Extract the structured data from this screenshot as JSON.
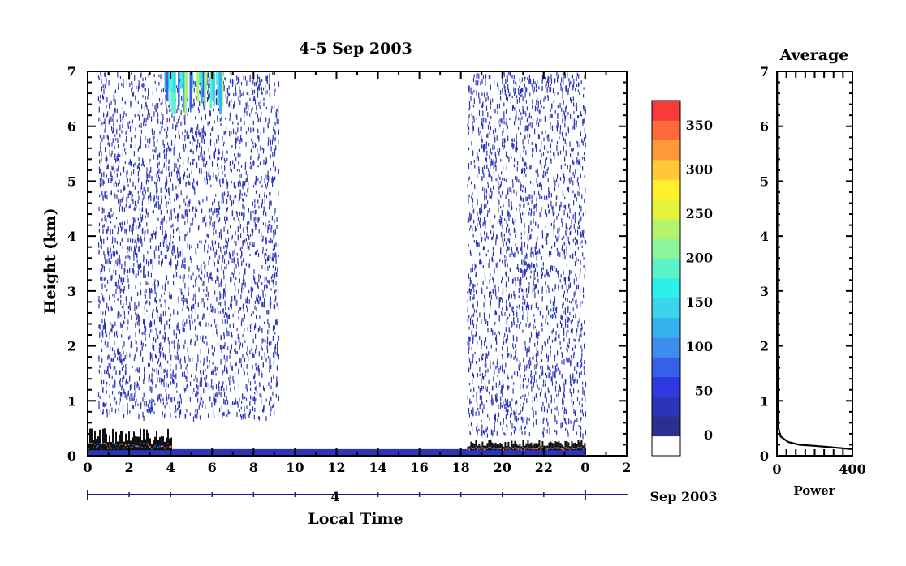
{
  "chart_data": [
    {
      "type": "heatmap",
      "title": "4-5 Sep 2003",
      "xlabel": "Local Time",
      "ylabel": "Height (km)",
      "xlim": [
        0,
        26
      ],
      "ylim": [
        0,
        7
      ],
      "x_ticks": [
        "0",
        "2",
        "4",
        "6",
        "8",
        "10",
        "12",
        "14",
        "16",
        "18",
        "20",
        "22",
        "0",
        "2"
      ],
      "y_ticks": [
        "0",
        "1",
        "2",
        "3",
        "4",
        "5",
        "6",
        "7"
      ],
      "date_axis": {
        "day_label": "4",
        "month_label": "Sep 2003",
        "span_hours": [
          0,
          24
        ]
      },
      "colorbar": {
        "ticks": [
          "0",
          "50",
          "100",
          "150",
          "200",
          "250",
          "300",
          "350"
        ],
        "colors": [
          "#ffffff",
          "#2b2f8f",
          "#2a35b8",
          "#2e3ae0",
          "#3560ea",
          "#3f8cef",
          "#35b2ee",
          "#3ad4ec",
          "#2df0ec",
          "#5cf3c8",
          "#8cf49a",
          "#b5f36a",
          "#e5f33c",
          "#fff02e",
          "#ffc838",
          "#ff9a3a",
          "#ff6a3c",
          "#f73a3a"
        ]
      },
      "data_regions": [
        {
          "name": "sparse noise",
          "time_hours": [
            0.5,
            9.2
          ],
          "height_km": [
            0.7,
            7
          ],
          "value": 25
        },
        {
          "name": "sparse noise",
          "time_hours": [
            18.3,
            24
          ],
          "height_km": [
            0.4,
            7
          ],
          "value": 25
        },
        {
          "name": "near-surface layer",
          "time_hours": [
            0,
            24
          ],
          "height_km": [
            0,
            0.12
          ],
          "value": 30
        },
        {
          "name": "boundary layer echo",
          "time_hours": [
            0,
            4
          ],
          "height_km": [
            0.1,
            0.5
          ],
          "value": 60
        },
        {
          "name": "boundary layer echo",
          "time_hours": [
            18.3,
            24
          ],
          "height_km": [
            0.1,
            0.3
          ],
          "value": 60
        },
        {
          "name": "upper-level echo",
          "time_hours": [
            3.7,
            6.5
          ],
          "height_km": [
            6.2,
            7
          ],
          "value": 160
        }
      ]
    },
    {
      "type": "line",
      "title": "Average",
      "xlabel": "Power",
      "ylabel": "",
      "xlim": [
        0,
        400
      ],
      "ylim": [
        0,
        7
      ],
      "x_ticks": [
        "0",
        "400"
      ],
      "y_ticks": [
        "0",
        "1",
        "2",
        "3",
        "4",
        "5",
        "6",
        "7"
      ],
      "series": [
        {
          "x": [
            400,
            300,
            200,
            120,
            60,
            20,
            8,
            5,
            3,
            2,
            2,
            1,
            1
          ],
          "y": [
            0.12,
            0.15,
            0.18,
            0.2,
            0.25,
            0.35,
            0.5,
            1.0,
            2.0,
            4.0,
            5.5,
            6.5,
            7.0
          ]
        }
      ]
    }
  ]
}
